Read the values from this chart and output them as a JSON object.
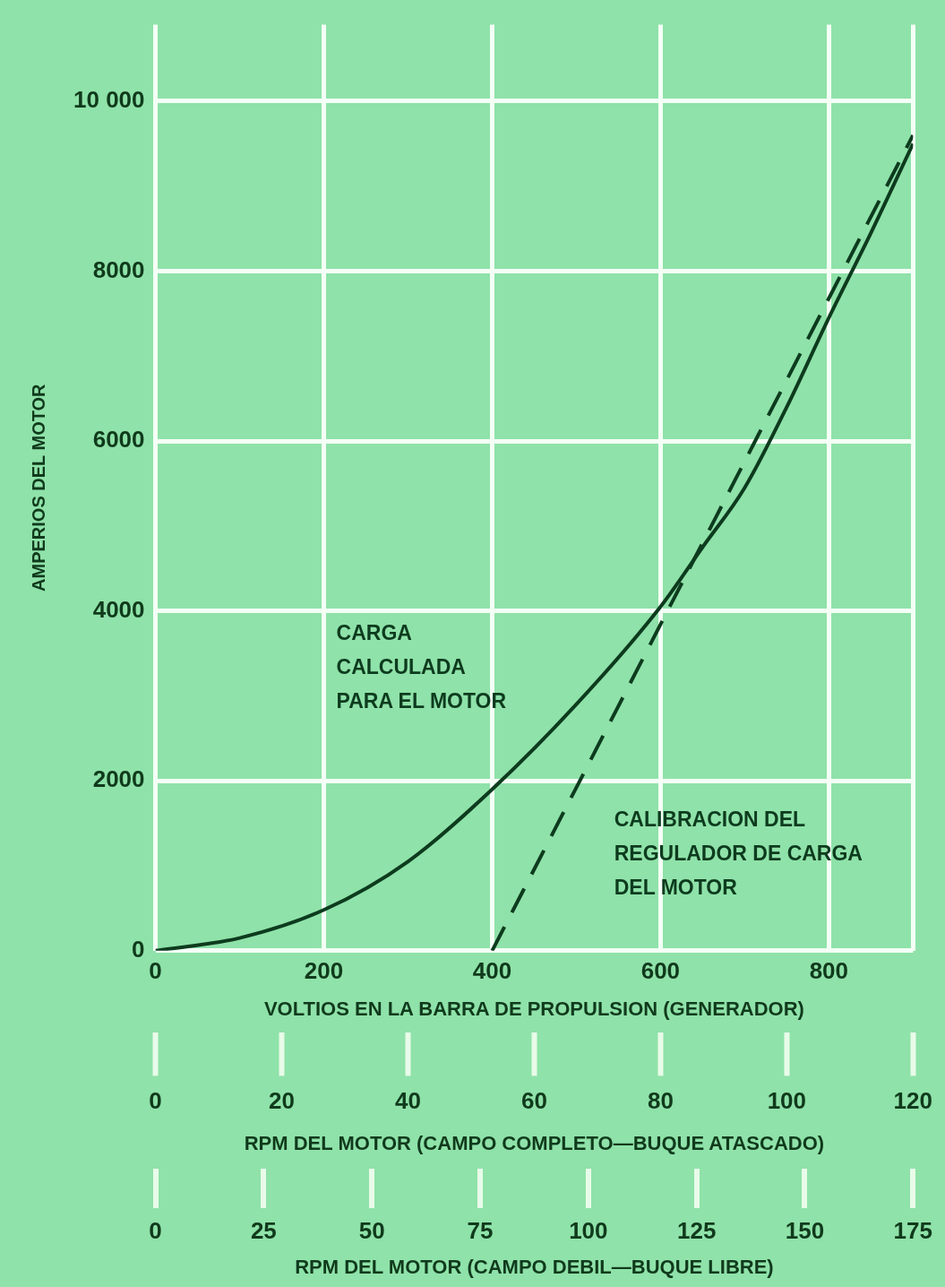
{
  "chart_data": {
    "type": "line",
    "xlabel": "VOLTIOS EN LA BARRA DE PROPULSION (GENERADOR)",
    "ylabel": "AMPERIOS DEL MOTOR",
    "x2label": "RPM DEL MOTOR (CAMPO COMPLETO—BUQUE ATASCADO)",
    "annotations": [
      "0",
      "25",
      "50",
      "75",
      "100",
      "125",
      "150",
      "175",
      "RPM DEL MOTOR (CAMPO DEBIL—BUQUE LIBRE)"
    ],
    "xlim": [
      0,
      900
    ],
    "xticks": [
      0,
      200,
      400,
      600,
      800,
      {
        "value": 900,
        "label": null
      }
    ],
    "ylim": [
      0,
      10900
    ],
    "yticks": [
      0,
      2000,
      4000,
      6000,
      8000,
      {
        "value": 10000,
        "label": "10 000"
      }
    ],
    "x2lim": [
      0,
      120
    ],
    "x2ticks": [
      0,
      20,
      40,
      60,
      80,
      100,
      120
    ],
    "series": [
      {
        "name": "CARGA CALCULADA PARA EL MOTOR",
        "color": "#0d3b1e",
        "line_style": "solid",
        "x": [
          0,
          100,
          200,
          300,
          400,
          500,
          600,
          650,
          700,
          750,
          800,
          850,
          900
        ],
        "values": [
          0,
          150,
          480,
          1050,
          1900,
          2900,
          4050,
          4750,
          5450,
          6400,
          7450,
          8450,
          9500
        ]
      },
      {
        "name": "CALIBRACION DEL REGULADOR DE CARGA DEL MOTOR",
        "color": "#0d3b1e",
        "line_style": "dashed",
        "x": [
          400,
          900
        ],
        "values": [
          0,
          9600
        ]
      }
    ],
    "grid": true,
    "legend": false,
    "marker": "none"
  }
}
